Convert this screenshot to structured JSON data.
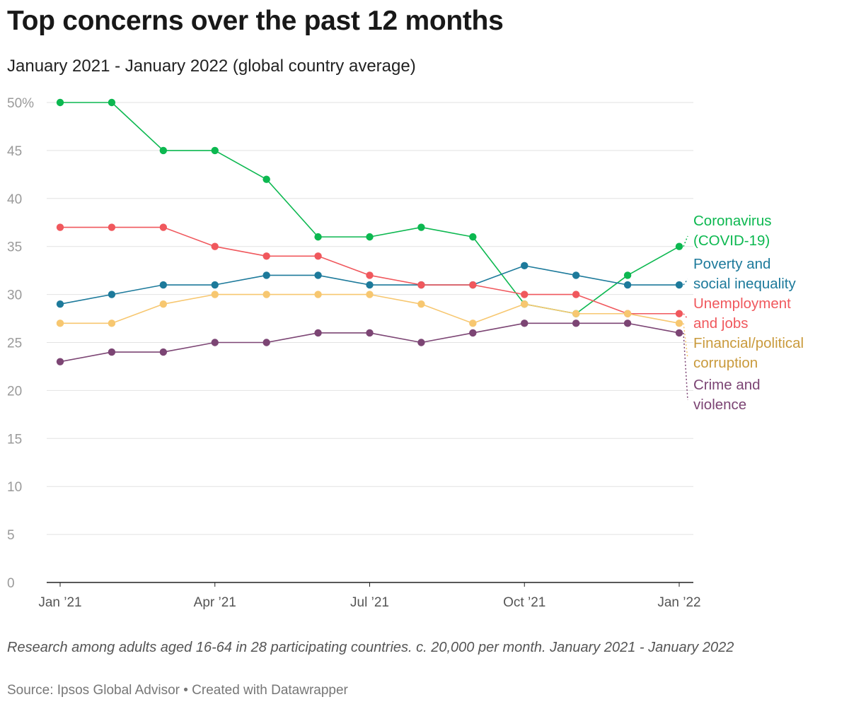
{
  "header": {
    "title": "Top concerns over the past 12 months",
    "subtitle": "January 2021 - January 2022 (global country average)"
  },
  "footer": {
    "notes": "Research among adults aged 16-64 in 28 participating countries. c. 20,000 per month. January 2021 - January 2022",
    "source": "Source: Ipsos Global Advisor • Created with Datawrapper"
  },
  "chart_data": {
    "type": "line",
    "title": "Top concerns over the past 12 months",
    "subtitle": "January 2021 - January 2022 (global country average)",
    "x": [
      "Jan 2021",
      "Feb 2021",
      "Mar 2021",
      "Apr 2021",
      "May 2021",
      "Jun 2021",
      "Jul 2021",
      "Aug 2021",
      "Sep 2021",
      "Oct 2021",
      "Nov 2021",
      "Dec 2021",
      "Jan 2022"
    ],
    "x_tick_labels": [
      {
        "index": 0,
        "label": "Jan ’21"
      },
      {
        "index": 3,
        "label": "Apr ’21"
      },
      {
        "index": 6,
        "label": "Jul ’21"
      },
      {
        "index": 9,
        "label": "Oct ’21"
      },
      {
        "index": 12,
        "label": "Jan ’22"
      }
    ],
    "y_tick_labels": [
      "50%",
      "45",
      "40",
      "35",
      "30",
      "25",
      "20",
      "15",
      "10",
      "5",
      "0"
    ],
    "ylim": [
      0,
      50
    ],
    "y_ticks": [
      50,
      45,
      40,
      35,
      30,
      25,
      20,
      15,
      10,
      5,
      0
    ],
    "grid": true,
    "legend": "direct labels at right end of lines",
    "series": [
      {
        "name": "Coronavirus (COVID-19)",
        "label_lines": [
          "Coronavirus",
          "(COVID-19)"
        ],
        "color": "#0cb850",
        "values": [
          50,
          50,
          45,
          45,
          42,
          36,
          36,
          37,
          36,
          29,
          28,
          32,
          35
        ]
      },
      {
        "name": "Poverty and social inequality",
        "label_lines": [
          "Poverty and",
          "social inequality"
        ],
        "color": "#1d7a9b",
        "values": [
          29,
          30,
          31,
          31,
          32,
          32,
          31,
          31,
          31,
          33,
          32,
          31,
          31
        ]
      },
      {
        "name": "Unemployment and jobs",
        "label_lines": [
          "Unemployment",
          "and jobs"
        ],
        "color": "#f0585d",
        "values": [
          37,
          37,
          37,
          35,
          34,
          34,
          32,
          31,
          31,
          30,
          30,
          28,
          28
        ]
      },
      {
        "name": "Financial/political corruption",
        "label_lines": [
          "Financial/political",
          "corruption"
        ],
        "color": "#f7c770",
        "label_color": "#c99a3c",
        "values": [
          27,
          27,
          29,
          30,
          30,
          30,
          30,
          29,
          27,
          29,
          28,
          28,
          27
        ]
      },
      {
        "name": "Crime and violence",
        "label_lines": [
          "Crime and",
          "violence"
        ],
        "color": "#7c4574",
        "values": [
          23,
          24,
          24,
          25,
          25,
          26,
          26,
          25,
          26,
          27,
          27,
          27,
          26
        ]
      }
    ]
  }
}
